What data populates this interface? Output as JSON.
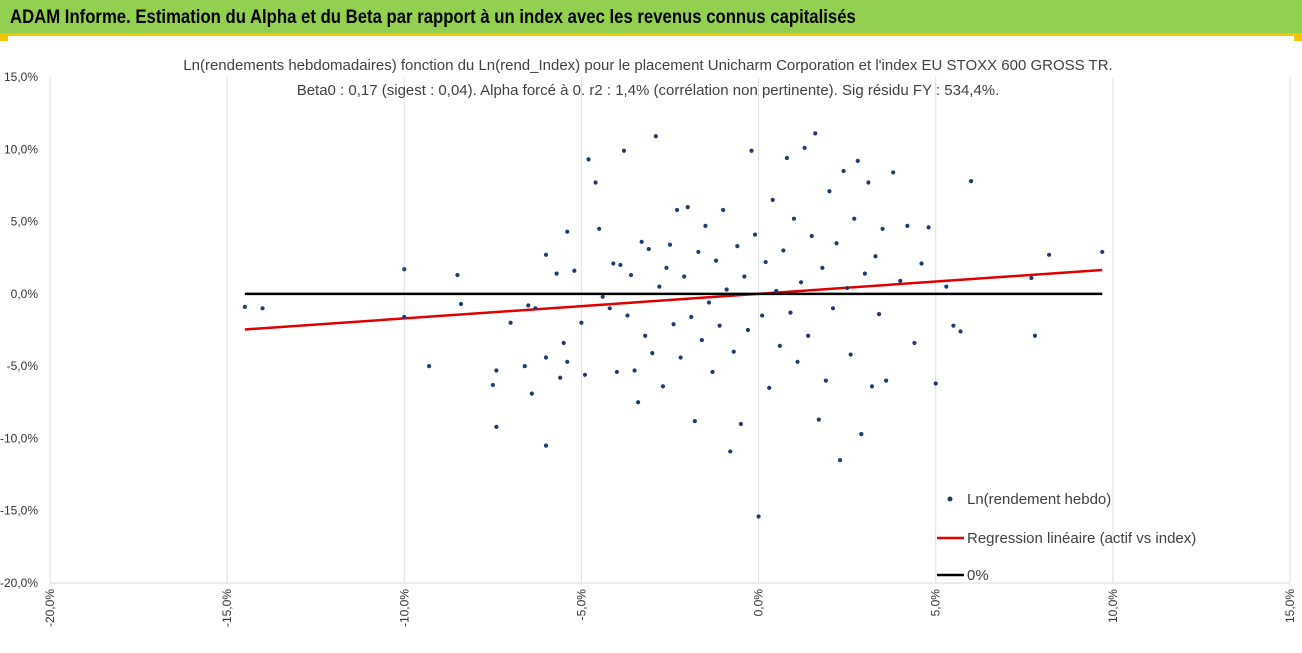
{
  "banner": {
    "title": "ADAM Informe. Estimation du Alpha et du Beta par rapport à un index avec les revenus connus capitalisés"
  },
  "chart_data": {
    "type": "scatter",
    "title": "Ln(rendements hebdomadaires) fonction du Ln(rend_Index) pour le placement Unicharm Corporation et l'index EU STOXX 600 GROSS TR.",
    "subtitle": "Beta0 : 0,17  (sigest : 0,04).  Alpha forcé à 0. r2 : 1,4% (corrélation non pertinente). Sig résidu FY : 534,4%.",
    "xlim": [
      -0.2,
      0.15
    ],
    "ylim": [
      -0.2,
      0.15
    ],
    "x_ticks": [
      -0.2,
      -0.15,
      -0.1,
      -0.05,
      0.0,
      0.05,
      0.1,
      0.15
    ],
    "x_tick_labels": [
      "-20,0%",
      "-15,0%",
      "-10,0%",
      "-5,0%",
      "0,0%",
      "5,0%",
      "10,0%",
      "15,0%"
    ],
    "y_ticks": [
      0.15,
      0.1,
      0.05,
      0.0,
      -0.05,
      -0.1,
      -0.15,
      -0.2
    ],
    "y_tick_labels": [
      "15,0%",
      "10,0%",
      "5,0%",
      "0,0%",
      "-5,0%",
      "-10,0%",
      "-15,0%",
      "-20,0%"
    ],
    "grid": "vertical",
    "legend_position": "bottom-right",
    "series": [
      {
        "name": "Ln(rendement hebdo)",
        "kind": "scatter",
        "color": "#1f3b73",
        "points": [
          [
            -0.145,
            -0.009
          ],
          [
            -0.14,
            -0.01
          ],
          [
            -0.1,
            0.017
          ],
          [
            -0.1,
            -0.016
          ],
          [
            -0.093,
            -0.05
          ],
          [
            -0.085,
            0.013
          ],
          [
            -0.084,
            -0.007
          ],
          [
            -0.075,
            -0.063
          ],
          [
            -0.074,
            -0.092
          ],
          [
            -0.074,
            -0.053
          ],
          [
            -0.07,
            -0.02
          ],
          [
            -0.066,
            -0.05
          ],
          [
            -0.065,
            -0.008
          ],
          [
            -0.064,
            -0.069
          ],
          [
            -0.063,
            -0.01
          ],
          [
            -0.06,
            -0.105
          ],
          [
            -0.06,
            -0.044
          ],
          [
            -0.06,
            0.027
          ],
          [
            -0.057,
            0.014
          ],
          [
            -0.056,
            -0.058
          ],
          [
            -0.055,
            -0.034
          ],
          [
            -0.054,
            0.043
          ],
          [
            -0.054,
            -0.047
          ],
          [
            -0.052,
            0.016
          ],
          [
            -0.05,
            -0.02
          ],
          [
            -0.049,
            -0.056
          ],
          [
            -0.048,
            0.093
          ],
          [
            -0.046,
            0.077
          ],
          [
            -0.045,
            0.045
          ],
          [
            -0.044,
            -0.002
          ],
          [
            -0.042,
            -0.01
          ],
          [
            -0.041,
            0.021
          ],
          [
            -0.04,
            -0.054
          ],
          [
            -0.039,
            0.02
          ],
          [
            -0.038,
            0.099
          ],
          [
            -0.037,
            -0.015
          ],
          [
            -0.036,
            0.013
          ],
          [
            -0.035,
            -0.053
          ],
          [
            -0.034,
            -0.075
          ],
          [
            -0.033,
            0.036
          ],
          [
            -0.032,
            -0.029
          ],
          [
            -0.031,
            0.031
          ],
          [
            -0.03,
            -0.041
          ],
          [
            -0.029,
            0.109
          ],
          [
            -0.028,
            0.005
          ],
          [
            -0.027,
            -0.064
          ],
          [
            -0.026,
            0.018
          ],
          [
            -0.025,
            0.034
          ],
          [
            -0.024,
            -0.021
          ],
          [
            -0.023,
            0.058
          ],
          [
            -0.022,
            -0.044
          ],
          [
            -0.021,
            0.012
          ],
          [
            -0.02,
            0.06
          ],
          [
            -0.019,
            -0.016
          ],
          [
            -0.018,
            -0.088
          ],
          [
            -0.017,
            0.029
          ],
          [
            -0.016,
            -0.032
          ],
          [
            -0.015,
            0.047
          ],
          [
            -0.014,
            -0.006
          ],
          [
            -0.013,
            -0.054
          ],
          [
            -0.012,
            0.023
          ],
          [
            -0.011,
            -0.022
          ],
          [
            -0.01,
            0.058
          ],
          [
            -0.009,
            0.003
          ],
          [
            -0.008,
            -0.109
          ],
          [
            -0.007,
            -0.04
          ],
          [
            -0.006,
            0.033
          ],
          [
            -0.005,
            -0.09
          ],
          [
            -0.004,
            0.012
          ],
          [
            -0.003,
            -0.025
          ],
          [
            -0.002,
            0.099
          ],
          [
            -0.001,
            0.041
          ],
          [
            0.0,
            -0.154
          ],
          [
            0.001,
            -0.015
          ],
          [
            0.002,
            0.022
          ],
          [
            0.003,
            -0.065
          ],
          [
            0.004,
            0.065
          ],
          [
            0.005,
            0.002
          ],
          [
            0.006,
            -0.036
          ],
          [
            0.007,
            0.03
          ],
          [
            0.008,
            0.094
          ],
          [
            0.009,
            -0.013
          ],
          [
            0.01,
            0.052
          ],
          [
            0.011,
            -0.047
          ],
          [
            0.012,
            0.008
          ],
          [
            0.013,
            0.101
          ],
          [
            0.014,
            -0.029
          ],
          [
            0.015,
            0.04
          ],
          [
            0.016,
            0.111
          ],
          [
            0.017,
            -0.087
          ],
          [
            0.018,
            0.018
          ],
          [
            0.019,
            -0.06
          ],
          [
            0.02,
            0.071
          ],
          [
            0.021,
            -0.01
          ],
          [
            0.022,
            0.035
          ],
          [
            0.023,
            -0.115
          ],
          [
            0.024,
            0.085
          ],
          [
            0.025,
            0.004
          ],
          [
            0.026,
            -0.042
          ],
          [
            0.027,
            0.052
          ],
          [
            0.028,
            0.092
          ],
          [
            0.029,
            -0.097
          ],
          [
            0.03,
            0.014
          ],
          [
            0.031,
            0.077
          ],
          [
            0.032,
            -0.064
          ],
          [
            0.033,
            0.026
          ],
          [
            0.034,
            -0.014
          ],
          [
            0.035,
            0.045
          ],
          [
            0.036,
            -0.06
          ],
          [
            0.038,
            0.084
          ],
          [
            0.04,
            0.009
          ],
          [
            0.042,
            0.047
          ],
          [
            0.044,
            -0.034
          ],
          [
            0.046,
            0.021
          ],
          [
            0.048,
            0.046
          ],
          [
            0.05,
            -0.062
          ],
          [
            0.053,
            0.005
          ],
          [
            0.055,
            -0.022
          ],
          [
            0.057,
            -0.026
          ],
          [
            0.06,
            0.078
          ],
          [
            0.077,
            0.011
          ],
          [
            0.078,
            -0.029
          ],
          [
            0.082,
            0.027
          ],
          [
            0.097,
            0.029
          ]
        ]
      },
      {
        "name": "Regression linéaire (actif vs index)",
        "kind": "line",
        "color": "#e00000",
        "x": [
          -0.145,
          0.097
        ],
        "y": [
          -0.02465,
          0.01649
        ]
      },
      {
        "name": "0%",
        "kind": "line",
        "color": "#000000",
        "x": [
          -0.145,
          0.097
        ],
        "y": [
          0.0,
          0.0
        ]
      }
    ]
  }
}
